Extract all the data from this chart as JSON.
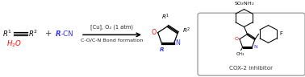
{
  "bg_color": "#ffffff",
  "alkyne_color": "#000000",
  "rcn_color": "#3333ff",
  "h2o_color": "#ff0000",
  "arrow_color": "#000000",
  "product_o_color": "#ff0000",
  "product_n_color": "#3333ff",
  "product_r_color": "#3333ff",
  "box_color": "#999999",
  "text_above_arrow": "[Cu], O₂ (1 atm)",
  "text_below_arrow": "C-O/C-N Bond formation",
  "cox2_label": "COX-2 inhibitor",
  "plus_color": "#000000"
}
